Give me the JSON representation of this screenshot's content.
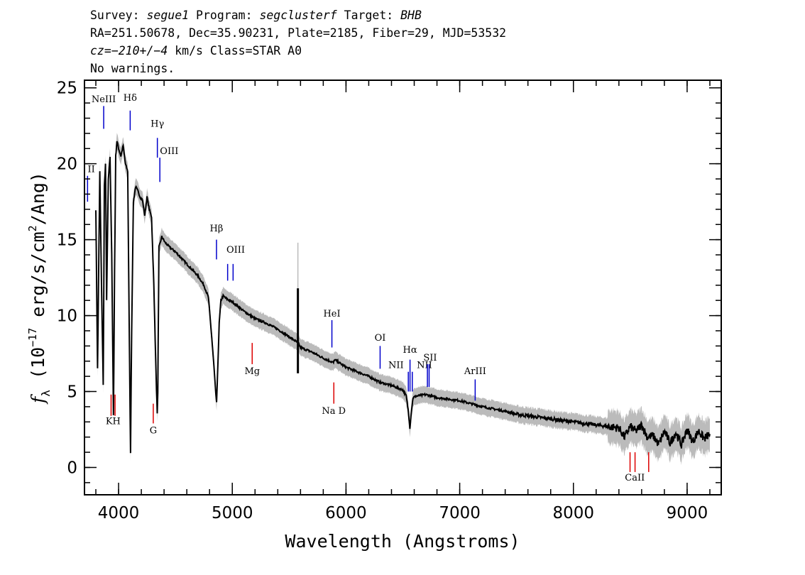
{
  "header": {
    "line1": {
      "survey_label": "Survey: ",
      "survey": "segue1",
      "program_label": " Program: ",
      "program": "segclusterf",
      "target_label": " Target: ",
      "target": "BHB"
    },
    "line2": "RA=251.50678, Dec=35.90231, Plate=2185, Fiber=29, MJD=53532",
    "line3": {
      "cz_label": "cz=",
      "cz_value": "−210+/−4",
      "cz_rest": " km/s Class=STAR A0"
    },
    "line4": "No warnings."
  },
  "chart_data": {
    "type": "line",
    "xlabel": "Wavelength (Angstroms)",
    "ylabel": "fλ (10⁻¹⁷ erg/s/cm²/Ang)",
    "xlim": [
      3700,
      9300
    ],
    "ylim": [
      -1.8,
      25.5
    ],
    "x_ticks": [
      4000,
      5000,
      6000,
      7000,
      8000,
      9000
    ],
    "y_ticks": [
      0,
      5,
      10,
      15,
      20,
      25
    ],
    "grid": false,
    "colors": {
      "flux": "#000000",
      "error": "#bbbbbb",
      "emission": "#0000cc",
      "absorption": "#dd0000"
    },
    "series": [
      {
        "role": "flux",
        "x": [
          3800,
          3815,
          3835,
          3850,
          3865,
          3875,
          3885,
          3895,
          3910,
          3925,
          3940,
          3955,
          3965,
          3975,
          3985,
          4000,
          4020,
          4040,
          4060,
          4080,
          4095,
          4105,
          4115,
          4130,
          4150,
          4170,
          4190,
          4210,
          4230,
          4250,
          4270,
          4290,
          4310,
          4330,
          4340,
          4345,
          4355,
          4380,
          4410,
          4450,
          4500,
          4550,
          4600,
          4650,
          4700,
          4750,
          4790,
          4820,
          4840,
          4855,
          4862,
          4870,
          4885,
          4900,
          4920,
          4950,
          5000,
          5100,
          5200,
          5300,
          5400,
          5500,
          5580,
          5600,
          5700,
          5800,
          5890,
          5900,
          6000,
          6100,
          6200,
          6300,
          6400,
          6500,
          6530,
          6550,
          6562,
          6575,
          6590,
          6620,
          6700,
          6800,
          6900,
          7000,
          7100,
          7200,
          7300,
          7400,
          7500,
          7600,
          7700,
          7800,
          7900,
          8000,
          8100,
          8200,
          8300,
          8400,
          8450,
          8500,
          8550,
          8600,
          8650,
          8700,
          8750,
          8800,
          8850,
          8900,
          8950,
          9000,
          9050,
          9100,
          9150,
          9200
        ],
        "y": [
          17,
          6.5,
          19.5,
          12,
          5.5,
          18.5,
          20,
          11,
          19,
          20.5,
          14,
          3.5,
          13,
          20.5,
          21.5,
          21,
          20.5,
          21.2,
          20,
          19.5,
          8,
          1,
          9,
          17.5,
          18.5,
          18.2,
          17.8,
          17.6,
          16.6,
          17.8,
          17,
          16.5,
          12,
          6,
          3.5,
          5,
          14.5,
          15.2,
          14.8,
          14.5,
          14.2,
          13.8,
          13.4,
          13,
          12.6,
          12,
          11.2,
          8.5,
          6.5,
          4.8,
          4.3,
          6,
          9.5,
          11,
          11.3,
          11.1,
          10.9,
          10.3,
          9.8,
          9.5,
          9.1,
          8.6,
          8.2,
          7.9,
          7.6,
          7.2,
          6.9,
          7.1,
          6.6,
          6.3,
          6,
          5.6,
          5.4,
          5.1,
          4.7,
          3.6,
          2.6,
          3.7,
          4.6,
          4.7,
          4.8,
          4.6,
          4.5,
          4.4,
          4.2,
          4.0,
          3.85,
          3.7,
          3.5,
          3.4,
          3.3,
          3.2,
          3.1,
          3.0,
          2.9,
          2.8,
          2.7,
          2.6,
          2.0,
          2.7,
          2.4,
          2.8,
          2.0,
          2.1,
          1.5,
          2.4,
          1.6,
          2.3,
          1.5,
          2.5,
          1.7,
          2.4,
          1.9,
          2.2
        ]
      },
      {
        "role": "sky-spike",
        "x": [
          5577,
          5577
        ],
        "y": [
          6.2,
          11.8
        ]
      }
    ],
    "error_band_halfwidth": 0.55,
    "lines": {
      "emission": [
        {
          "label": "NeIII",
          "x": 3869,
          "y_top": 23.8,
          "y_bot": 22.3,
          "lx": 3869,
          "ly": 23.9
        },
        {
          "label": "Hδ",
          "x": 4102,
          "y_top": 23.5,
          "y_bot": 22.2,
          "lx": 4102,
          "ly": 24.0
        },
        {
          "label": "Hγ",
          "x": 4341,
          "y_top": 21.7,
          "y_bot": 20.4,
          "lx": 4341,
          "ly": 22.3
        },
        {
          "label": "OIII",
          "x": 4363,
          "y_top": 20.4,
          "y_bot": 18.8,
          "lx": 4445,
          "ly": 20.5
        },
        {
          "label": "II",
          "x": 3727,
          "y_top": 19.2,
          "y_bot": 17.5,
          "lx": 3760,
          "ly": 19.3
        },
        {
          "label": "Hβ",
          "x": 4861,
          "y_top": 15.0,
          "y_bot": 13.7,
          "lx": 4861,
          "ly": 15.4
        },
        {
          "label": "OIII",
          "x": 4959,
          "y_top": 13.4,
          "y_bot": 12.3,
          "lx": 5030,
          "ly": 14.0
        },
        {
          "label": "",
          "x": 5007,
          "y_top": 13.4,
          "y_bot": 12.3,
          "lx": 5007,
          "ly": 13.4
        },
        {
          "label": "HeI",
          "x": 5876,
          "y_top": 9.7,
          "y_bot": 7.9,
          "lx": 5876,
          "ly": 9.8
        },
        {
          "label": "OI",
          "x": 6300,
          "y_top": 8.0,
          "y_bot": 6.5,
          "lx": 6300,
          "ly": 8.2
        },
        {
          "label": "NII",
          "x": 6548,
          "y_top": 6.3,
          "y_bot": 5.0,
          "lx": 6440,
          "ly": 6.4
        },
        {
          "label": "Hα",
          "x": 6563,
          "y_top": 7.1,
          "y_bot": 5.0,
          "lx": 6563,
          "ly": 7.4
        },
        {
          "label": "NII",
          "x": 6583,
          "y_top": 6.3,
          "y_bot": 5.0,
          "lx": 6690,
          "ly": 6.4
        },
        {
          "label": "SII",
          "x": 6716,
          "y_top": 6.8,
          "y_bot": 5.3,
          "lx": 6740,
          "ly": 6.9
        },
        {
          "label": "",
          "x": 6731,
          "y_top": 6.8,
          "y_bot": 5.3,
          "lx": 6731,
          "ly": 6.8
        },
        {
          "label": "ArIII",
          "x": 7136,
          "y_top": 5.8,
          "y_bot": 4.4,
          "lx": 7136,
          "ly": 6.0
        }
      ],
      "absorption": [
        {
          "label": "",
          "x": 3934,
          "y_top": 4.8,
          "y_bot": 3.4,
          "lx": 3934,
          "ly": 3.4
        },
        {
          "label": "KH",
          "x": 3969,
          "y_top": 4.8,
          "y_bot": 3.4,
          "lx": 3952,
          "ly": 2.7
        },
        {
          "label": "G",
          "x": 4305,
          "y_top": 4.2,
          "y_bot": 2.9,
          "lx": 4305,
          "ly": 2.1
        },
        {
          "label": "Mg",
          "x": 5175,
          "y_top": 8.2,
          "y_bot": 6.8,
          "lx": 5175,
          "ly": 6.0
        },
        {
          "label": "Na  D",
          "x": 5893,
          "y_top": 5.6,
          "y_bot": 4.2,
          "lx": 5893,
          "ly": 3.4
        },
        {
          "label": "",
          "x": 8498,
          "y_top": 1.0,
          "y_bot": -0.3,
          "lx": 8498,
          "ly": -0.3
        },
        {
          "label": "CaII",
          "x": 8542,
          "y_top": 1.0,
          "y_bot": -0.3,
          "lx": 8540,
          "ly": -1.0
        },
        {
          "label": "",
          "x": 8662,
          "y_top": 1.0,
          "y_bot": -0.3,
          "lx": 8662,
          "ly": -0.3
        }
      ]
    }
  }
}
